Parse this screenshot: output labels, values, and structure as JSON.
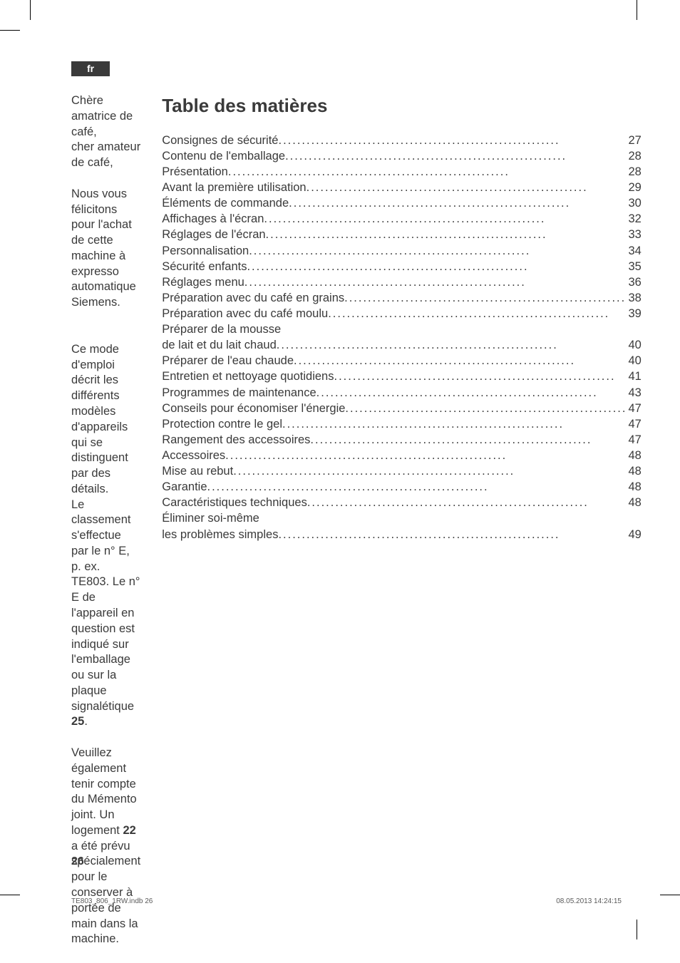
{
  "colors": {
    "text": "#3a3a3a",
    "tab_bg": "#3a3a3a",
    "tab_text": "#ffffff",
    "footer_text": "#5a5a5a",
    "background": "#ffffff"
  },
  "typography": {
    "body_fontsize_pt": 12,
    "toc_title_fontsize_pt": 20,
    "footer_fontsize_pt": 7,
    "font_family": "Arial, Helvetica, sans-serif"
  },
  "lang_tab": "fr",
  "intro": {
    "greeting_l1": "Chère amatrice de café,",
    "greeting_l2": "cher amateur de café,",
    "p1": "Nous vous félicitons pour l'achat de cette machine à expresso automatique Siemens.",
    "p2a": "Ce mode d'emploi décrit les différents modèles d'appareils qui se distinguent par des détails.",
    "p2b_pre": "Le classement s'effectue par le n° E, p. ex. TE803. Le n° E de l'appareil en question est indiqué sur l'emballage ou sur la plaque signalétique ",
    "p2b_bold": "25",
    "p2b_post": ".",
    "p3_pre": "Veuillez également tenir compte du Mémento joint. Un logement ",
    "p3_bold": "22",
    "p3_post": " a été prévu spécialement pour le conserver à portée de main dans la machine."
  },
  "toc": {
    "title": "Table des matières",
    "dots": "............................................................",
    "items": [
      {
        "label": "Consignes de sécurité",
        "page": "27"
      },
      {
        "label": "Contenu de l'emballage",
        "page": "28"
      },
      {
        "label": "Présentation ",
        "page": "28"
      },
      {
        "label": "Avant la première utilisation ",
        "page": "29"
      },
      {
        "label": "Éléments de commande",
        "page": "30"
      },
      {
        "label": "Affichages à l'écran ",
        "page": "32"
      },
      {
        "label": "Réglages de l'écran",
        "page": "33"
      },
      {
        "label": "Personnalisation",
        "page": "34"
      },
      {
        "label": "Sécurité enfants",
        "page": "35"
      },
      {
        "label": "Réglages menu ",
        "page": "36"
      },
      {
        "label": "Préparation avec du café en grains",
        "page": "38"
      },
      {
        "label": "Préparation avec du café moulu ",
        "page": "39"
      },
      {
        "label": "Préparer de la mousse",
        "page": ""
      },
      {
        "label": "de lait et du lait chaud",
        "page": "40"
      },
      {
        "label": "Préparer de l'eau chaude ",
        "page": "40"
      },
      {
        "label": "Entretien et nettoyage quotidiens",
        "page": "41"
      },
      {
        "label": "Programmes de maintenance ",
        "page": "43"
      },
      {
        "label": "Conseils pour économiser l'énergie ",
        "page": "47"
      },
      {
        "label": "Protection contre le gel ",
        "page": "47"
      },
      {
        "label": "Rangement des accessoires",
        "page": "47"
      },
      {
        "label": "Accessoires",
        "page": "48"
      },
      {
        "label": "Mise au rebut",
        "page": "48"
      },
      {
        "label": "Garantie",
        "page": "48"
      },
      {
        "label": "Caractéristiques techniques",
        "page": "48"
      },
      {
        "label": "Éliminer soi-même",
        "page": ""
      },
      {
        "label": "les problèmes simples",
        "page": "49"
      }
    ]
  },
  "page_number": "26",
  "footer": {
    "left": "TE803_806_1RW.indb   26",
    "right": "08.05.2013   14:24:15"
  }
}
